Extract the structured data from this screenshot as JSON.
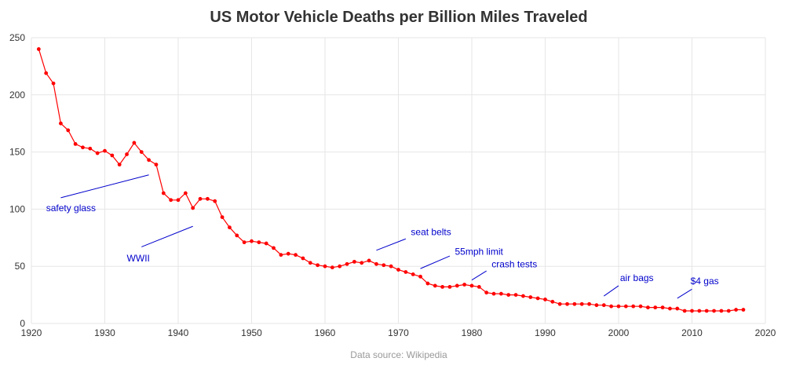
{
  "chart_data": {
    "type": "line",
    "title": "US Motor Vehicle Deaths per Billion Miles Traveled",
    "xlabel": "",
    "ylabel": "",
    "xlim": [
      1920,
      2020
    ],
    "ylim": [
      0,
      250
    ],
    "x_ticks": [
      1920,
      1930,
      1940,
      1950,
      1960,
      1970,
      1980,
      1990,
      2000,
      2010,
      2020
    ],
    "y_ticks": [
      0,
      50,
      100,
      150,
      200,
      250
    ],
    "grid": true,
    "series": [
      {
        "name": "Deaths per billion miles",
        "color": "#ff0000",
        "x": [
          1921,
          1922,
          1923,
          1924,
          1925,
          1926,
          1927,
          1928,
          1929,
          1930,
          1931,
          1932,
          1933,
          1934,
          1935,
          1936,
          1937,
          1938,
          1939,
          1940,
          1941,
          1942,
          1943,
          1944,
          1945,
          1946,
          1947,
          1948,
          1949,
          1950,
          1951,
          1952,
          1953,
          1954,
          1955,
          1956,
          1957,
          1958,
          1959,
          1960,
          1961,
          1962,
          1963,
          1964,
          1965,
          1966,
          1967,
          1968,
          1969,
          1970,
          1971,
          1972,
          1973,
          1974,
          1975,
          1976,
          1977,
          1978,
          1979,
          1980,
          1981,
          1982,
          1983,
          1984,
          1985,
          1986,
          1987,
          1988,
          1989,
          1990,
          1991,
          1992,
          1993,
          1994,
          1995,
          1996,
          1997,
          1998,
          1999,
          2000,
          2001,
          2002,
          2003,
          2004,
          2005,
          2006,
          2007,
          2008,
          2009,
          2010,
          2011,
          2012,
          2013,
          2014,
          2015,
          2016,
          2017
        ],
        "values": [
          240,
          219,
          210,
          175,
          169,
          157,
          154,
          153,
          149,
          151,
          147,
          139,
          148,
          158,
          150,
          143,
          139,
          114,
          108,
          108,
          114,
          101,
          109,
          109,
          107,
          93,
          84,
          77,
          71,
          72,
          71,
          70,
          66,
          60,
          61,
          60,
          57,
          53,
          51,
          50,
          49,
          50,
          52,
          54,
          53,
          55,
          52,
          51,
          50,
          47,
          45,
          43,
          41,
          35,
          33,
          32,
          32,
          33,
          34,
          33,
          32,
          27,
          26,
          26,
          25,
          25,
          24,
          23,
          22,
          21,
          19,
          17,
          17,
          17,
          17,
          17,
          16,
          16,
          15,
          15,
          15,
          15,
          15,
          14,
          14,
          14,
          13,
          13,
          11,
          11,
          11,
          11,
          11,
          11,
          11,
          12,
          12
        ]
      }
    ],
    "annotations": [
      {
        "text": "safety glass",
        "line_from": [
          1936,
          130
        ],
        "line_to": [
          1924,
          110
        ],
        "text_x": 1922,
        "text_y": 101
      },
      {
        "text": "WWII",
        "line_from": [
          1942,
          85
        ],
        "line_to": [
          1935,
          67
        ],
        "text_x": 1933,
        "text_y": 57
      },
      {
        "text": "seat belts",
        "line_from": [
          1967,
          64
        ],
        "line_to": [
          1971,
          74
        ],
        "text_x": 1971.7,
        "text_y": 80
      },
      {
        "text": "55mph limit",
        "line_from": [
          1973,
          48
        ],
        "line_to": [
          1977,
          59
        ],
        "text_x": 1977.7,
        "text_y": 63
      },
      {
        "text": "crash tests",
        "line_from": [
          1980,
          38
        ],
        "line_to": [
          1982,
          46
        ],
        "text_x": 1982.7,
        "text_y": 52
      },
      {
        "text": "air bags",
        "line_from": [
          1998,
          24
        ],
        "line_to": [
          2000,
          33
        ],
        "text_x": 2000.2,
        "text_y": 40
      },
      {
        "text": "$4 gas",
        "line_from": [
          2008,
          22
        ],
        "line_to": [
          2010,
          30
        ],
        "text_x": 2009.8,
        "text_y": 37
      }
    ],
    "annotation_color": "#0000cc",
    "source_note": "Data source: Wikipedia"
  }
}
